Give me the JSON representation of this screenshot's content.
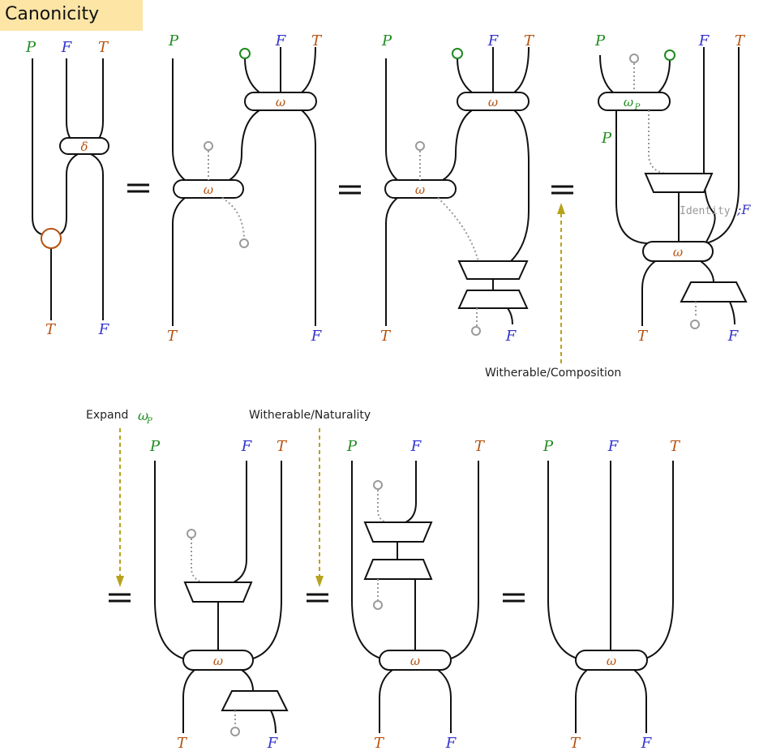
{
  "title": "Canonicity",
  "labels": {
    "P": "P",
    "F": "F",
    "T": "T"
  },
  "symbols": {
    "delta": "δ",
    "omega": "ω",
    "omega_sub": "P"
  },
  "annotations": {
    "composition": "Witherable/Composition",
    "expand_prefix": "Expand",
    "expand_sub": "P",
    "naturality": "Witherable/Naturality",
    "identity": "Identity",
    "identity_suffix": ";F"
  },
  "colors": {
    "P": "#1e8a1e",
    "F": "#3333cc",
    "T": "#b5520f",
    "arrow": "#b8a21c",
    "title_bg": "#fde5a6"
  }
}
